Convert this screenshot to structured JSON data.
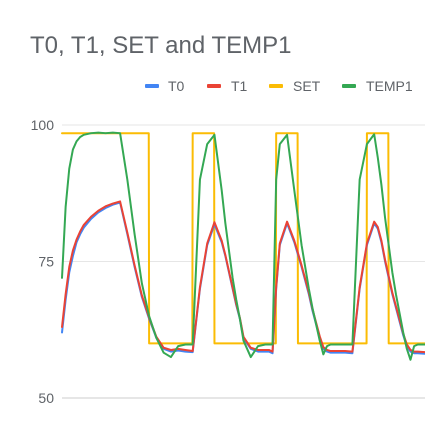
{
  "chart_data": {
    "type": "line",
    "title": "T0, T1, SET and TEMP1",
    "xlabel": "",
    "ylabel": "",
    "ylim": [
      50,
      100
    ],
    "yticks": [
      50,
      75,
      100
    ],
    "xlim": [
      0,
      100
    ],
    "grid": true,
    "legend_position": "top-right",
    "series": [
      {
        "name": "T0",
        "color": "#4285f4",
        "x": [
          0,
          1,
          2,
          3,
          4,
          5,
          6,
          8,
          10,
          12,
          14,
          16,
          18,
          20,
          22,
          24,
          26,
          28,
          30,
          32,
          34,
          36,
          38,
          40,
          42,
          44,
          45,
          46,
          47,
          48,
          49,
          50,
          52,
          54,
          56,
          57,
          58,
          59,
          60,
          62,
          64,
          66,
          68,
          69,
          70,
          71,
          72,
          73,
          74,
          76,
          78,
          80,
          82,
          84,
          86,
          87,
          88,
          89,
          90,
          91,
          92,
          93,
          94,
          95,
          96,
          97,
          98,
          100
        ],
        "y": [
          62,
          68,
          73,
          76,
          78.5,
          80,
          81.2,
          82.8,
          84,
          84.8,
          85.4,
          85.8,
          80,
          74,
          68.5,
          64.5,
          61,
          59,
          58.5,
          58.7,
          58.5,
          58.4,
          70,
          78,
          81.8,
          78.5,
          76,
          73,
          70,
          67,
          64.5,
          61,
          59,
          58.5,
          58.5,
          58.5,
          58.2,
          70,
          78,
          82,
          78.5,
          74,
          69,
          66,
          63.5,
          61,
          59,
          58.5,
          58.3,
          58.3,
          58.3,
          58.2,
          70,
          78,
          82,
          81,
          78.5,
          75,
          72,
          69,
          66.5,
          64,
          61.5,
          59.5,
          58.5,
          58.2,
          58.2,
          58.1
        ]
      },
      {
        "name": "T1",
        "color": "#ea4335",
        "x": [
          0,
          1,
          2,
          3,
          4,
          5,
          6,
          8,
          10,
          12,
          14,
          16,
          18,
          20,
          22,
          24,
          26,
          28,
          30,
          32,
          34,
          36,
          38,
          40,
          42,
          44,
          45,
          46,
          47,
          48,
          49,
          50,
          52,
          54,
          56,
          57,
          58,
          59,
          60,
          62,
          64,
          66,
          68,
          69,
          70,
          71,
          72,
          73,
          74,
          76,
          78,
          80,
          82,
          84,
          86,
          87,
          88,
          89,
          90,
          91,
          92,
          93,
          94,
          95,
          96,
          97,
          98,
          100
        ],
        "y": [
          63,
          69,
          74,
          77,
          79,
          80.5,
          81.7,
          83.2,
          84.3,
          85.1,
          85.6,
          86,
          80.3,
          74.3,
          68.8,
          64.7,
          61.2,
          59.2,
          58.8,
          59,
          58.8,
          58.6,
          70.3,
          78.3,
          82.2,
          78.8,
          76.2,
          73.2,
          70.2,
          67.2,
          64.7,
          61.2,
          59.2,
          58.8,
          58.8,
          58.8,
          58.5,
          70.3,
          78.3,
          82.3,
          78.8,
          74.3,
          69.3,
          66.3,
          63.8,
          61.3,
          59.3,
          58.8,
          58.6,
          58.6,
          58.6,
          58.5,
          70.3,
          78.3,
          82.3,
          81.3,
          78.8,
          75.3,
          72.3,
          69.3,
          66.8,
          64.3,
          61.8,
          59.8,
          58.8,
          58.5,
          58.5,
          58.4
        ]
      },
      {
        "name": "SET",
        "color": "#fbbc04",
        "x": [
          0,
          0.1,
          23.9,
          24,
          35.9,
          36,
          41.9,
          42,
          58.9,
          59,
          64.9,
          65,
          83.9,
          84,
          89.9,
          90,
          100
        ],
        "y": [
          98.5,
          98.5,
          98.5,
          60,
          60,
          98.5,
          98.5,
          60,
          60,
          98.5,
          98.5,
          60,
          60,
          98.5,
          98.5,
          60,
          60
        ]
      },
      {
        "name": "TEMP1",
        "color": "#34a853",
        "x": [
          0,
          1,
          2,
          3,
          4,
          5,
          6,
          8,
          10,
          12,
          14,
          16,
          18,
          20,
          22,
          24,
          26,
          28,
          30,
          32,
          34,
          36,
          38,
          40,
          42,
          44,
          45,
          46,
          47,
          48,
          49,
          50,
          52,
          54,
          56,
          57,
          58,
          59,
          60,
          62,
          64,
          66,
          68,
          69,
          70,
          71,
          72,
          73,
          74,
          76,
          78,
          80,
          82,
          84,
          86,
          87,
          88,
          89,
          90,
          91,
          92,
          93,
          94,
          95,
          96,
          97,
          98,
          100
        ],
        "y": [
          72,
          85,
          92,
          95.5,
          97,
          97.8,
          98.2,
          98.5,
          98.6,
          98.5,
          98.6,
          98.5,
          90,
          80,
          71,
          65,
          61,
          58.3,
          57.5,
          59.5,
          59.8,
          59.8,
          90,
          96.5,
          98.2,
          88,
          82,
          77,
          72,
          68,
          64.5,
          60.5,
          57.5,
          59.5,
          59.8,
          59.8,
          59.8,
          90,
          96.5,
          98.2,
          88,
          78,
          70,
          66.5,
          63.5,
          60.5,
          58,
          59.5,
          59.8,
          59.8,
          59.8,
          59.8,
          90,
          96.5,
          98.3,
          94,
          89,
          83,
          78,
          73,
          69,
          65.5,
          62,
          59,
          57,
          59.5,
          59.8,
          59.8
        ]
      }
    ]
  }
}
